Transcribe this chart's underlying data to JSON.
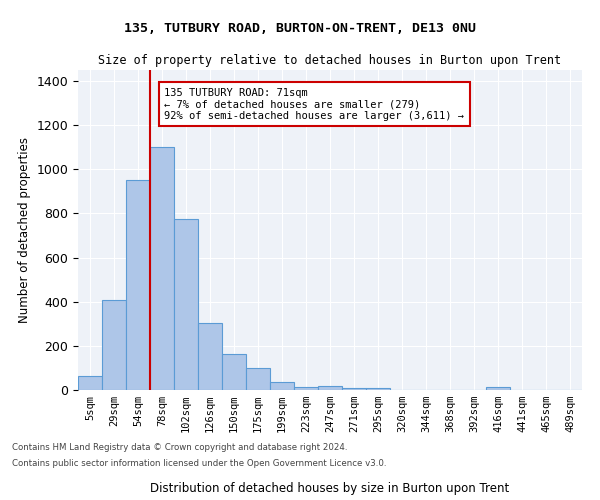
{
  "title1": "135, TUTBURY ROAD, BURTON-ON-TRENT, DE13 0NU",
  "title2": "Size of property relative to detached houses in Burton upon Trent",
  "xlabel": "Distribution of detached houses by size in Burton upon Trent",
  "ylabel": "Number of detached properties",
  "categories": [
    "5sqm",
    "29sqm",
    "54sqm",
    "78sqm",
    "102sqm",
    "126sqm",
    "150sqm",
    "175sqm",
    "199sqm",
    "223sqm",
    "247sqm",
    "271sqm",
    "295sqm",
    "320sqm",
    "344sqm",
    "368sqm",
    "392sqm",
    "416sqm",
    "441sqm",
    "465sqm",
    "489sqm"
  ],
  "values": [
    65,
    410,
    950,
    1100,
    775,
    305,
    165,
    100,
    35,
    15,
    18,
    8,
    8,
    0,
    0,
    0,
    0,
    15,
    0,
    0,
    0
  ],
  "bar_color": "#aec6e8",
  "bar_edge_color": "#5b9bd5",
  "vline_color": "#cc0000",
  "annotation_text": "135 TUTBURY ROAD: 71sqm\n← 7% of detached houses are smaller (279)\n92% of semi-detached houses are larger (3,611) →",
  "annotation_box_color": "#cc0000",
  "ylim": [
    0,
    1450
  ],
  "yticks": [
    0,
    200,
    400,
    600,
    800,
    1000,
    1200,
    1400
  ],
  "bg_color": "#eef2f8",
  "grid_color": "#ffffff",
  "footer1": "Contains HM Land Registry data © Crown copyright and database right 2024.",
  "footer2": "Contains public sector information licensed under the Open Government Licence v3.0."
}
